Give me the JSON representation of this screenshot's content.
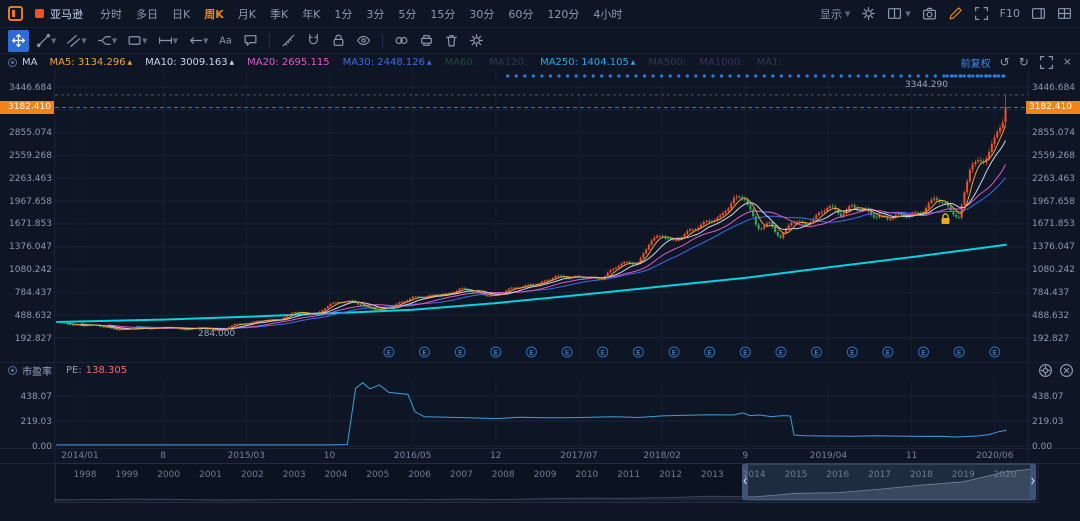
{
  "colors": {
    "background": "#0e1626",
    "accent": "#f08418",
    "up": "#f0522a",
    "down": "#2fae5a",
    "blue": "#2e7cd6",
    "ma250_line": "#00d4e0",
    "pe_line": "#3d9ed8",
    "price_tag_bg": "#f08418",
    "pe_value_color": "#f2705c"
  },
  "topbar": {
    "stock_tab": {
      "label": "亚马逊"
    },
    "timeframes": [
      "分时",
      "多日",
      "日K",
      "周K",
      "月K",
      "季K",
      "年K",
      "1分",
      "3分",
      "5分",
      "15分",
      "30分",
      "60分",
      "120分",
      "4小时"
    ],
    "active_timeframe": "周K",
    "display_menu_label": "显示",
    "f10_label": "F10",
    "right_icons": [
      "settings-gear-icon",
      "layout-dropdown-icon",
      "camera-icon",
      "pencil-icon",
      "fullscreen-icon",
      "panel-right-icon",
      "grid-layout-icon"
    ]
  },
  "draw_toolbar": {
    "tools": [
      {
        "name": "crosshair-tool",
        "active": true
      },
      {
        "name": "trendline-tool",
        "dropdown": true
      },
      {
        "name": "channel-tool",
        "dropdown": true
      },
      {
        "name": "pitchfork-tool",
        "dropdown": true
      },
      {
        "name": "shape-tool",
        "dropdown": true
      },
      {
        "name": "measure-tool",
        "dropdown": true
      },
      {
        "name": "arrow-left-tool",
        "dropdown": true
      },
      {
        "name": "text-tool"
      },
      {
        "name": "comment-tool"
      },
      {
        "sep": true
      },
      {
        "name": "ruler-tool"
      },
      {
        "name": "magnet-tool"
      },
      {
        "name": "lock-tool"
      },
      {
        "name": "eye-tool"
      },
      {
        "sep": true
      },
      {
        "name": "link-tool"
      },
      {
        "name": "printer-tool"
      },
      {
        "name": "trash-tool"
      },
      {
        "name": "settings-tool"
      }
    ]
  },
  "indicator_bar": {
    "group_label": "MA",
    "mas": [
      {
        "label": "MA5",
        "value": "3134.296",
        "arrow": "▲",
        "color": "#f0a03c",
        "enabled": true
      },
      {
        "label": "MA10",
        "value": "3009.163",
        "arrow": "▲",
        "color": "#c8d4e8",
        "enabled": true
      },
      {
        "label": "MA20",
        "value": "2695.115",
        "arrow": "",
        "color": "#e05ac8",
        "enabled": true
      },
      {
        "label": "MA30",
        "value": "2448.126",
        "arrow": "▲",
        "color": "#3c6ce8",
        "enabled": true
      },
      {
        "label": "MA60",
        "value": "",
        "arrow": "",
        "color": "#3a8a5a",
        "enabled": false
      },
      {
        "label": "MA120",
        "value": "",
        "arrow": "",
        "color": "#5a6a85",
        "enabled": false
      },
      {
        "label": "MA250",
        "value": "1404.105",
        "arrow": "▲",
        "color": "#2ea6f0",
        "enabled": true
      },
      {
        "label": "MA500",
        "value": "",
        "arrow": "",
        "color": "#5a6a85",
        "enabled": false
      },
      {
        "label": "MA1000",
        "value": "",
        "arrow": "",
        "color": "#7a5aa0",
        "enabled": false
      },
      {
        "label": "MA1",
        "value": "",
        "arrow": "",
        "color": "#5a6a85",
        "enabled": false
      }
    ],
    "adjust_label": "前复权"
  },
  "main_chart": {
    "y_axis_labels": [
      "3446.684",
      "3182.410",
      "2855.074",
      "2559.268",
      "2263.463",
      "1967.658",
      "1671.853",
      "1376.047",
      "1080.242",
      "784.437",
      "488.632",
      "192.827"
    ],
    "price_tag": "3182.410",
    "high_annotation": "3344.290",
    "low_annotation": "284.000",
    "earnings_marker_letter": "E"
  },
  "pe_pane": {
    "title": "市盈率",
    "pe_label": "PE:",
    "pe_value": "138.305",
    "y_axis_labels": [
      "438.07",
      "219.03",
      "0.00"
    ]
  },
  "timeline": {
    "years": [
      "1998",
      "1999",
      "2000",
      "2001",
      "2002",
      "2003",
      "2004",
      "2005",
      "2006",
      "2007",
      "2008",
      "2009",
      "2010",
      "2011",
      "2012",
      "2013",
      "2014",
      "2015",
      "2016",
      "2017",
      "2018",
      "2019",
      "2020"
    ]
  },
  "chart_data": {
    "type": "candlestick",
    "symbol": "亚马逊",
    "interval": "周K",
    "adjust": "前复权",
    "y_ticks": [
      3446.684,
      3182.41,
      2855.074,
      2559.268,
      2263.463,
      1967.658,
      1671.853,
      1376.047,
      1080.242,
      784.437,
      488.632,
      192.827
    ],
    "current_price": 3182.41,
    "ath": 3344.29,
    "period_low": 284.0,
    "pe_current": 138.305,
    "months_start": "2013/11",
    "monthly_close": [
      395,
      375,
      358,
      362,
      336,
      304,
      312,
      324,
      312,
      339,
      322,
      300,
      332,
      302,
      300,
      372,
      372,
      422,
      429,
      434,
      536,
      512,
      511,
      625,
      664,
      675,
      587,
      552,
      593,
      659,
      722,
      715,
      758,
      769,
      837,
      789,
      750,
      749,
      823,
      845,
      886,
      924,
      994,
      968,
      987,
      980,
      961,
      1105,
      1176,
      1169,
      1450,
      1512,
      1447,
      1566,
      1629,
      1699,
      1777,
      2012,
      2003,
      1598,
      1690,
      1501,
      1718,
      1639,
      1780,
      1926,
      1775,
      1893,
      1866,
      1776,
      1735,
      1776,
      1800,
      1847,
      2008,
      1883,
      1760,
      2474,
      2442,
      2758,
      3182.41
    ],
    "ma250": [
      [
        -2,
        400
      ],
      [
        7,
        432
      ],
      [
        14,
        468
      ],
      [
        21,
        512
      ],
      [
        28,
        558
      ],
      [
        35,
        645
      ],
      [
        42,
        750
      ],
      [
        49,
        862
      ],
      [
        56,
        972
      ],
      [
        63,
        1108
      ],
      [
        70,
        1242
      ],
      [
        77,
        1382
      ],
      [
        78,
        1404.105
      ]
    ],
    "pe": [
      [
        -2,
        10
      ],
      [
        21,
        10
      ],
      [
        22.5,
        13
      ],
      [
        23.2,
        505
      ],
      [
        23.8,
        555
      ],
      [
        24.4,
        500
      ],
      [
        25.2,
        535
      ],
      [
        26,
        470
      ],
      [
        27.6,
        452
      ],
      [
        28.2,
        300
      ],
      [
        29,
        256
      ],
      [
        31,
        252
      ],
      [
        33,
        246
      ],
      [
        35,
        240
      ],
      [
        37,
        252
      ],
      [
        39,
        248
      ],
      [
        41,
        247
      ],
      [
        43,
        252
      ],
      [
        45,
        256
      ],
      [
        47,
        250
      ],
      [
        49,
        264
      ],
      [
        51,
        270
      ],
      [
        53,
        274
      ],
      [
        55,
        272
      ],
      [
        55.8,
        290
      ],
      [
        56.4,
        266
      ],
      [
        57.2,
        272
      ],
      [
        58.2,
        258
      ],
      [
        59.2,
        266
      ],
      [
        59.8,
        263
      ],
      [
        60.1,
        96
      ],
      [
        61,
        90
      ],
      [
        63,
        88
      ],
      [
        65,
        86
      ],
      [
        67,
        89
      ],
      [
        69,
        87
      ],
      [
        71,
        84
      ],
      [
        72.5,
        86
      ],
      [
        73.5,
        79
      ],
      [
        74.5,
        82
      ],
      [
        75.5,
        88
      ],
      [
        76.5,
        100
      ],
      [
        77.3,
        124
      ],
      [
        78,
        138.305
      ]
    ],
    "pe_y_ticks": [
      438.07,
      219.03,
      0.0
    ],
    "earnings_months": [
      26,
      29,
      32,
      35,
      38,
      41,
      44,
      47,
      50,
      53,
      56,
      59,
      62,
      65,
      68,
      71,
      74,
      77
    ],
    "x_labels": [
      [
        "2014/01",
        0
      ],
      [
        "8",
        7
      ],
      [
        "2015/03",
        14
      ],
      [
        "10",
        21
      ],
      [
        "2016/05",
        28
      ],
      [
        "12",
        35
      ],
      [
        "2017/07",
        42
      ],
      [
        "2018/02",
        49
      ],
      [
        "9",
        56
      ],
      [
        "2019/04",
        63
      ],
      [
        "11",
        70
      ],
      [
        "2020/06",
        77
      ]
    ]
  }
}
